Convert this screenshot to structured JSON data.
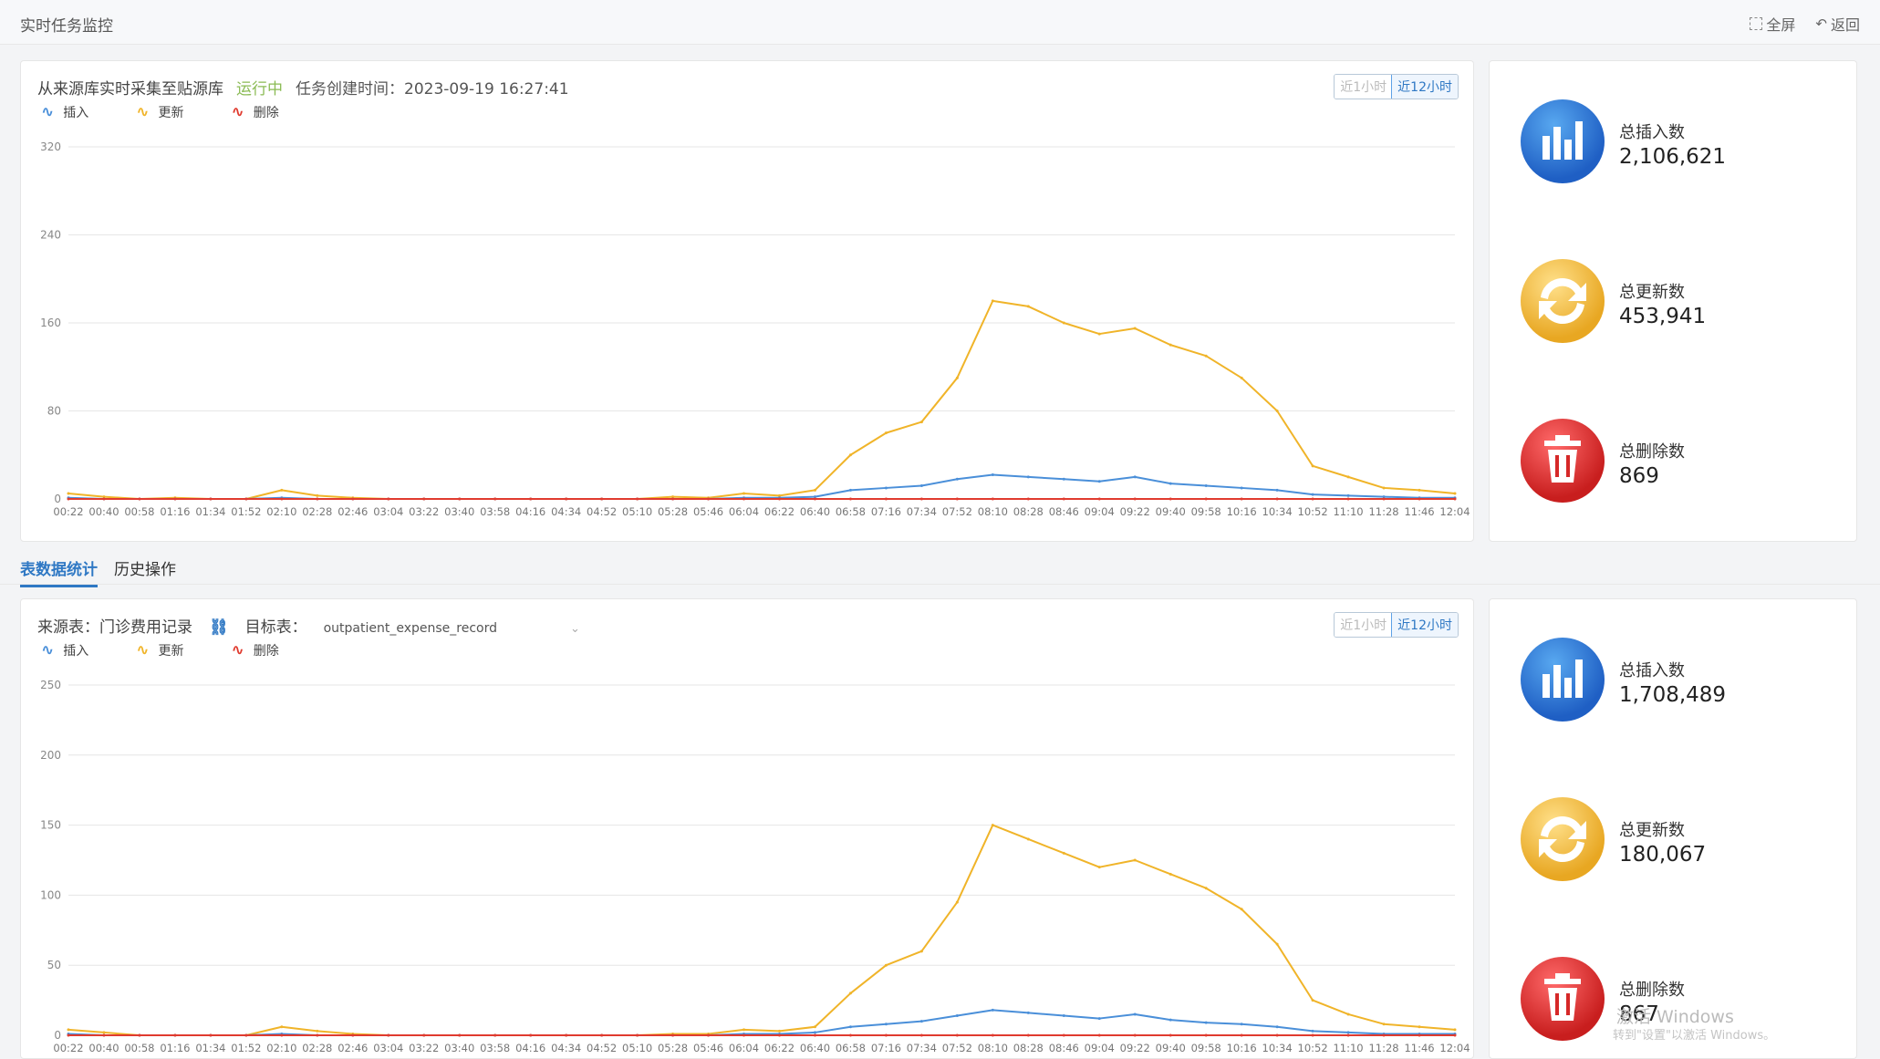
{
  "header": {
    "title": "实时任务监控",
    "fullscreen_label": "全屏",
    "back_label": "返回"
  },
  "panel1": {
    "title": "从来源库实时采集至贴源库",
    "status": "运行中",
    "created_time": "任务创建时间：2023-09-19 16:27:41",
    "range_1h": "近1小时",
    "range_12h": "近12小时"
  },
  "panel2": {
    "source_label": "来源表：门诊费用记录",
    "target_label": "目标表：",
    "target_value": "outpatient_expense_record",
    "range_1h": "近1小时",
    "range_12h": "近12小时"
  },
  "legend": {
    "insert": "插入",
    "update": "更新",
    "delete": "删除"
  },
  "tabs": [
    {
      "label": "表数据统计"
    },
    {
      "label": "历史操作"
    }
  ],
  "stats1": {
    "insert_label": "总插入数",
    "insert_value": "2,106,621",
    "update_label": "总更新数",
    "update_value": "453,941",
    "delete_label": "总删除数",
    "delete_value": "869"
  },
  "stats2": {
    "insert_label": "总插入数",
    "insert_value": "1,708,489",
    "update_label": "总更新数",
    "update_value": "180,067",
    "delete_label": "总删除数",
    "delete_value": "867"
  },
  "watermark": {
    "line1": "激活 Windows",
    "line2": "转到\"设置\"以激活 Windows。"
  },
  "colors": {
    "insert": "#4a8fd9",
    "update": "#f0b429",
    "delete": "#e03b2f",
    "accent": "#2f78c4"
  },
  "chart_data": [
    {
      "type": "line",
      "x": [
        "00:22",
        "00:40",
        "00:58",
        "01:16",
        "01:34",
        "01:52",
        "02:10",
        "02:28",
        "02:46",
        "03:04",
        "03:22",
        "03:40",
        "03:58",
        "04:16",
        "04:34",
        "04:52",
        "05:10",
        "05:28",
        "05:46",
        "06:04",
        "06:22",
        "06:40",
        "06:58",
        "07:16",
        "07:34",
        "07:52",
        "08:10",
        "08:28",
        "08:46",
        "09:04",
        "09:22",
        "09:40",
        "09:58",
        "10:16",
        "10:34",
        "10:52",
        "11:10",
        "11:28",
        "11:46",
        "12:04"
      ],
      "yticks": [
        0,
        80,
        160,
        240,
        320
      ],
      "ylim": [
        0,
        320
      ],
      "series": [
        {
          "name": "更新",
          "values": [
            5,
            2,
            0,
            1,
            0,
            0,
            8,
            3,
            1,
            0,
            0,
            0,
            0,
            0,
            0,
            0,
            0,
            2,
            1,
            5,
            3,
            8,
            40,
            60,
            70,
            110,
            180,
            175,
            160,
            150,
            155,
            140,
            130,
            110,
            80,
            30,
            20,
            10,
            8,
            5
          ]
        },
        {
          "name": "插入",
          "values": [
            1,
            0,
            0,
            0,
            0,
            0,
            1,
            0,
            0,
            0,
            0,
            0,
            0,
            0,
            0,
            0,
            0,
            0,
            0,
            1,
            1,
            2,
            8,
            10,
            12,
            18,
            22,
            20,
            18,
            16,
            20,
            14,
            12,
            10,
            8,
            4,
            3,
            2,
            1,
            1
          ]
        },
        {
          "name": "删除",
          "values": [
            0,
            0,
            0,
            0,
            0,
            0,
            0,
            0,
            0,
            0,
            0,
            0,
            0,
            0,
            0,
            0,
            0,
            0,
            0,
            0,
            0,
            0,
            0,
            0,
            0,
            0,
            0,
            0,
            0,
            0,
            0,
            0,
            0,
            0,
            0,
            0,
            0,
            0,
            0,
            0
          ]
        }
      ],
      "grid": true
    },
    {
      "type": "line",
      "x": [
        "00:22",
        "00:40",
        "00:58",
        "01:16",
        "01:34",
        "01:52",
        "02:10",
        "02:28",
        "02:46",
        "03:04",
        "03:22",
        "03:40",
        "03:58",
        "04:16",
        "04:34",
        "04:52",
        "05:10",
        "05:28",
        "05:46",
        "06:04",
        "06:22",
        "06:40",
        "06:58",
        "07:16",
        "07:34",
        "07:52",
        "08:10",
        "08:28",
        "08:46",
        "09:04",
        "09:22",
        "09:40",
        "09:58",
        "10:16",
        "10:34",
        "10:52",
        "11:10",
        "11:28",
        "11:46",
        "12:04"
      ],
      "yticks": [
        0,
        50,
        100,
        150,
        200,
        250
      ],
      "ylim": [
        0,
        250
      ],
      "series": [
        {
          "name": "更新",
          "values": [
            4,
            2,
            0,
            0,
            0,
            0,
            6,
            3,
            1,
            0,
            0,
            0,
            0,
            0,
            0,
            0,
            0,
            1,
            1,
            4,
            3,
            6,
            30,
            50,
            60,
            95,
            150,
            140,
            130,
            120,
            125,
            115,
            105,
            90,
            65,
            25,
            15,
            8,
            6,
            4
          ]
        },
        {
          "name": "插入",
          "values": [
            1,
            0,
            0,
            0,
            0,
            0,
            1,
            0,
            0,
            0,
            0,
            0,
            0,
            0,
            0,
            0,
            0,
            0,
            0,
            1,
            1,
            2,
            6,
            8,
            10,
            14,
            18,
            16,
            14,
            12,
            15,
            11,
            9,
            8,
            6,
            3,
            2,
            1,
            1,
            1
          ]
        },
        {
          "name": "删除",
          "values": [
            0,
            0,
            0,
            0,
            0,
            0,
            0,
            0,
            0,
            0,
            0,
            0,
            0,
            0,
            0,
            0,
            0,
            0,
            0,
            0,
            0,
            0,
            0,
            0,
            0,
            0,
            0,
            0,
            0,
            0,
            0,
            0,
            0,
            0,
            0,
            0,
            0,
            0,
            0,
            0
          ]
        }
      ],
      "grid": true
    }
  ]
}
